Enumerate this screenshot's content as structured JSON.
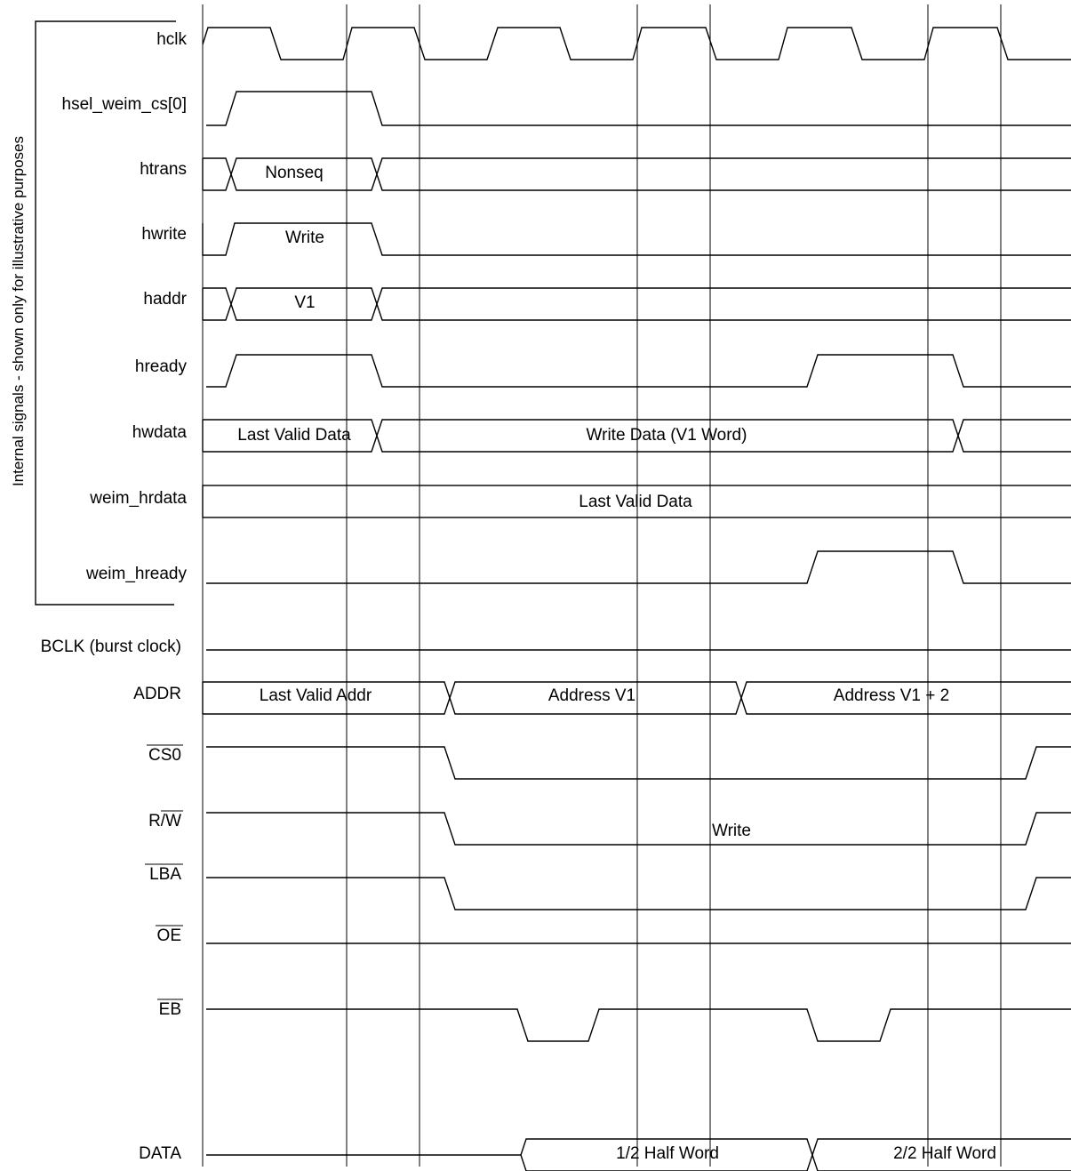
{
  "group_label": "Internal signals - shown only for illustrative purposes",
  "signals": [
    {
      "label": "hclk"
    },
    {
      "label": "hsel_weim_cs[0]"
    },
    {
      "label": "htrans",
      "bus": [
        "Nonseq"
      ]
    },
    {
      "label": "hwrite",
      "annotation": "Write"
    },
    {
      "label": "haddr",
      "bus": [
        "V1"
      ]
    },
    {
      "label": "hready"
    },
    {
      "label": "hwdata",
      "bus": [
        "Last Valid Data",
        "Write Data (V1 Word)"
      ]
    },
    {
      "label": "weim_hrdata",
      "bus": [
        "Last Valid Data"
      ]
    },
    {
      "label": "weim_hready"
    },
    {
      "label": "BCLK (burst clock)"
    },
    {
      "label": "ADDR",
      "bus": [
        "Last Valid Addr",
        "Address V1",
        "Address V1 + 2"
      ]
    },
    {
      "label": "CS0",
      "overbar": true
    },
    {
      "label": "R/",
      "suffix_overbar": "W",
      "annotation": "Write"
    },
    {
      "label": "LBA",
      "overbar": true
    },
    {
      "label": "OE",
      "overbar": true
    },
    {
      "label": "EB",
      "overbar": true
    },
    {
      "label": "DATA",
      "bus": [
        "1/2 Half Word",
        "2/2 Half Word"
      ]
    }
  ]
}
